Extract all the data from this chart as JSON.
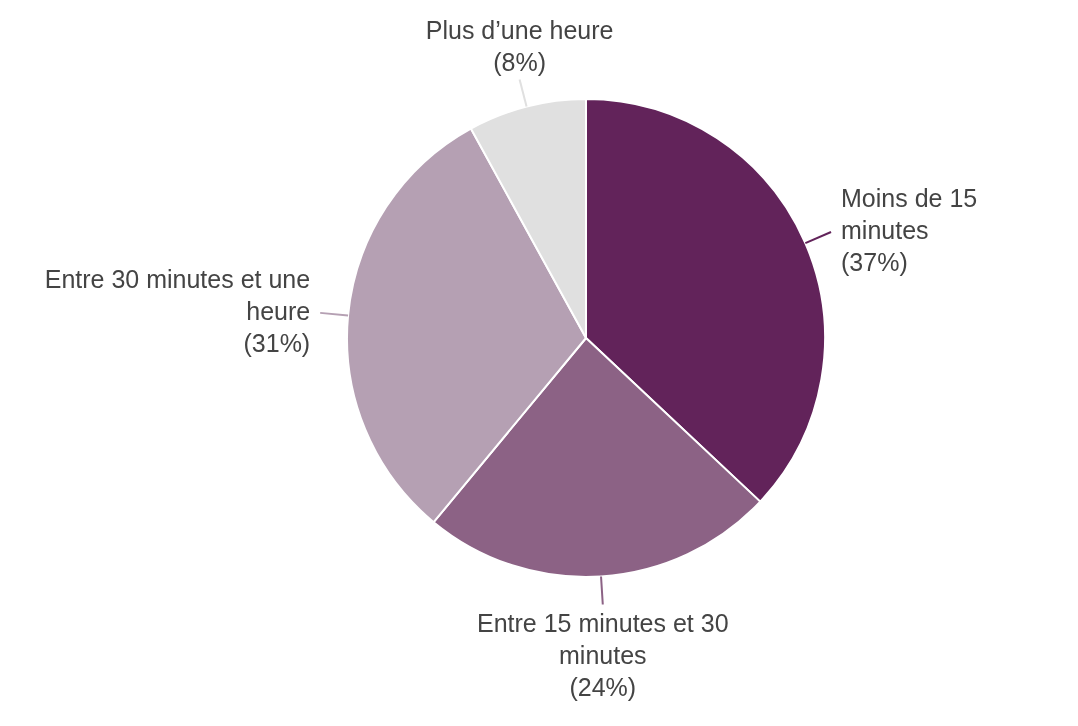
{
  "chart_data": {
    "type": "pie",
    "categories": [
      "Moins de 15 minutes",
      "Entre 15 minutes et 30 minutes",
      "Entre 30 minutes et une heure",
      "Plus d’une heure"
    ],
    "values": [
      37,
      24,
      31,
      8
    ],
    "colors": [
      "#62235a",
      "#8c6285",
      "#b5a0b3",
      "#e0e0e0"
    ],
    "value_labels": [
      "(37%)",
      "(24%)",
      "(31%)",
      "(8%)"
    ],
    "legend": false
  }
}
